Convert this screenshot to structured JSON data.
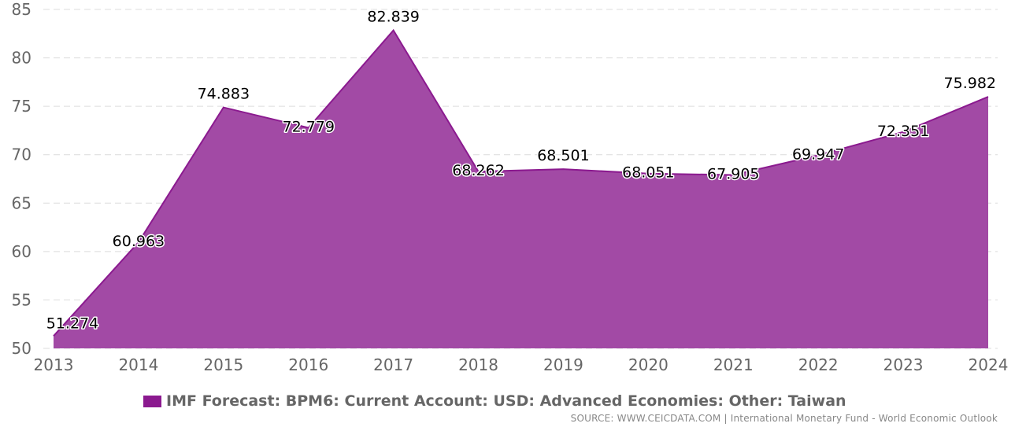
{
  "chart_data": {
    "type": "area",
    "categories": [
      "2013",
      "2014",
      "2015",
      "2016",
      "2017",
      "2018",
      "2019",
      "2020",
      "2021",
      "2022",
      "2023",
      "2024"
    ],
    "series": [
      {
        "name": "IMF Forecast: BPM6: Current Account: USD: Advanced Economies: Other: Taiwan",
        "values": [
          51.274,
          60.963,
          74.883,
          72.779,
          82.839,
          68.262,
          68.501,
          68.051,
          67.905,
          69.947,
          72.351,
          75.982
        ],
        "labels": [
          "51.274",
          "60.963",
          "74.883",
          "72.779",
          "82.839",
          "68.262",
          "68.501",
          "68.051",
          "67.905",
          "69.947",
          "72.351",
          "75.982"
        ]
      }
    ],
    "y_ticks": [
      "50",
      "55",
      "60",
      "65",
      "70",
      "75",
      "80",
      "85"
    ],
    "ylim": [
      50,
      85
    ],
    "grid": true,
    "legend_position": "bottom-left",
    "colors": {
      "fill": "#a24aa5",
      "line": "#8b1a8f",
      "grid": "#dcdcdc"
    }
  },
  "legend": {
    "label": "IMF Forecast: BPM6: Current Account: USD: Advanced Economies: Other: Taiwan"
  },
  "source": {
    "text": "SOURCE: WWW.CEICDATA.COM | International Monetary Fund - World Economic Outlook"
  }
}
